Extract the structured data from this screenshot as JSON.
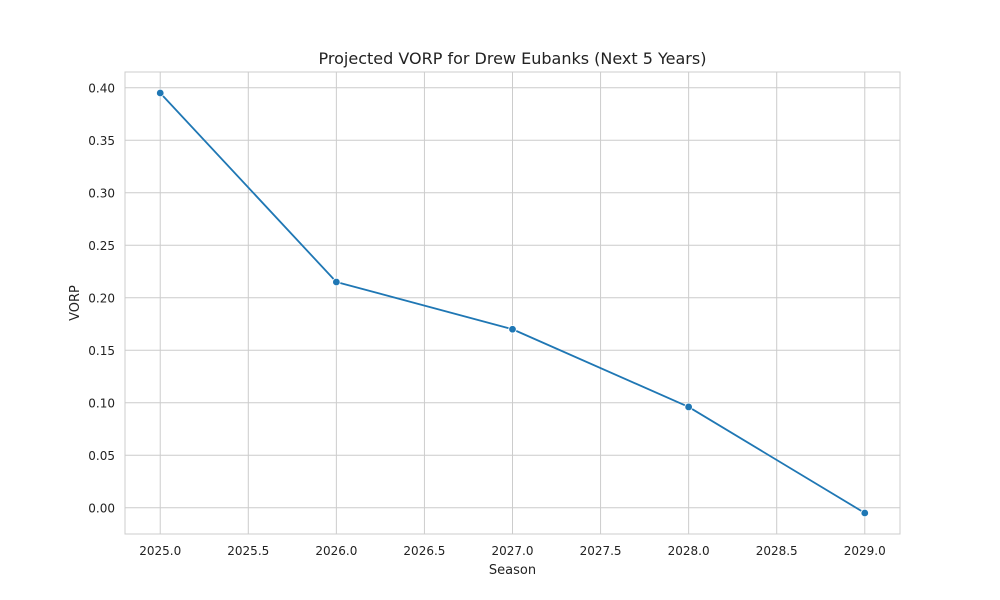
{
  "chart_data": {
    "type": "line",
    "title": "Projected VORP for Drew Eubanks (Next 5 Years)",
    "xlabel": "Season",
    "ylabel": "VORP",
    "x": [
      2025,
      2026,
      2027,
      2028,
      2029
    ],
    "series": [
      {
        "values": [
          0.395,
          0.215,
          0.17,
          0.096,
          -0.005
        ],
        "color": "#1f77b4"
      }
    ],
    "xlim": [
      2024.8,
      2029.2
    ],
    "ylim": [
      -0.025,
      0.415
    ],
    "xticks": [
      2025.0,
      2025.5,
      2026.0,
      2026.5,
      2027.0,
      2027.5,
      2028.0,
      2028.5,
      2029.0
    ],
    "xtick_labels": [
      "2025.0",
      "2025.5",
      "2026.0",
      "2026.5",
      "2027.0",
      "2027.5",
      "2028.0",
      "2028.5",
      "2029.0"
    ],
    "yticks": [
      0.0,
      0.05,
      0.1,
      0.15,
      0.2,
      0.25,
      0.3,
      0.35,
      0.4
    ],
    "ytick_labels": [
      "0.00",
      "0.05",
      "0.10",
      "0.15",
      "0.20",
      "0.25",
      "0.30",
      "0.35",
      "0.40"
    ],
    "grid": true,
    "marker": "circle"
  }
}
